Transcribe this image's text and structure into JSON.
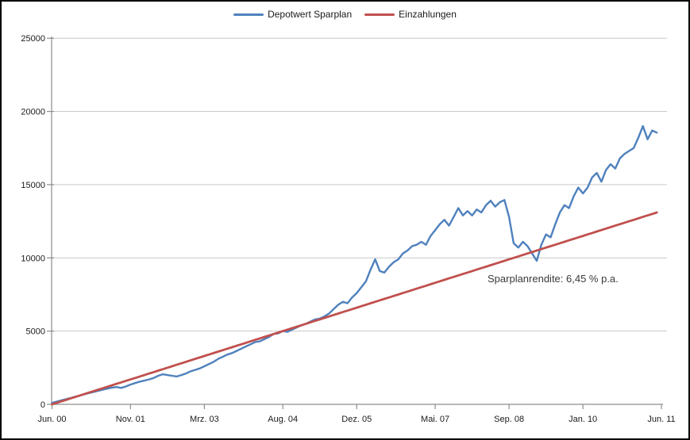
{
  "chart_data": {
    "type": "line",
    "title": "",
    "x_unit": "months since Jun 2000, monthly points",
    "x_tick_labels": [
      "Jun. 00",
      "Nov. 01",
      "Mrz. 03",
      "Aug. 04",
      "Dez. 05",
      "Mai. 07",
      "Sep. 08",
      "Jan. 10",
      "Jun. 11"
    ],
    "x_tick_months": [
      0,
      17,
      33,
      50,
      66,
      83,
      99,
      115,
      132
    ],
    "y_ticks": [
      0,
      5000,
      10000,
      15000,
      20000,
      25000
    ],
    "ylim": [
      0,
      25000
    ],
    "grid": "horizontal",
    "legend_position": "top-center",
    "axis_color": "#8c8c8c",
    "gridline_color": "#c9c9c9",
    "label_color": "#1a1a1a",
    "annotation": {
      "text": "Sparplanrendite: 6,45 % p.a."
    },
    "series": [
      {
        "name": "Depotwert Sparplan",
        "color": "#4F81BD",
        "values": [
          95,
          185,
          270,
          350,
          430,
          520,
          600,
          690,
          770,
          840,
          920,
          1000,
          1070,
          1140,
          1180,
          1120,
          1220,
          1350,
          1450,
          1550,
          1620,
          1700,
          1800,
          1950,
          2050,
          2000,
          1950,
          1900,
          2000,
          2100,
          2250,
          2350,
          2450,
          2600,
          2750,
          2900,
          3100,
          3250,
          3400,
          3500,
          3650,
          3800,
          3950,
          4100,
          4250,
          4300,
          4450,
          4600,
          4800,
          4850,
          5000,
          4950,
          5100,
          5250,
          5400,
          5500,
          5650,
          5800,
          5850,
          6000,
          6200,
          6500,
          6800,
          7000,
          6900,
          7300,
          7600,
          8000,
          8400,
          9200,
          9900,
          9100,
          9000,
          9400,
          9700,
          9900,
          10300,
          10500,
          10800,
          10900,
          11100,
          10900,
          11500,
          11900,
          12300,
          12600,
          12200,
          12800,
          13400,
          12900,
          13200,
          12900,
          13300,
          13100,
          13600,
          13900,
          13500,
          13800,
          13950,
          12800,
          11000,
          10700,
          11100,
          10800,
          10300,
          9800,
          10900,
          11600,
          11400,
          12300,
          13100,
          13600,
          13400,
          14200,
          14800,
          14400,
          14800,
          15500,
          15800,
          15200,
          16000,
          16400,
          16100,
          16800,
          17100,
          17300,
          17500,
          18200,
          19000,
          18100,
          18700,
          18550
        ]
      },
      {
        "name": "Einzahlungen",
        "color": "#C0504D",
        "monthly_deposit": 100,
        "values": [
          0,
          100,
          200,
          300,
          400,
          500,
          600,
          700,
          800,
          900,
          1000,
          1100,
          1200,
          1300,
          1400,
          1500,
          1600,
          1700,
          1800,
          1900,
          2000,
          2100,
          2200,
          2300,
          2400,
          2500,
          2600,
          2700,
          2800,
          2900,
          3000,
          3100,
          3200,
          3300,
          3400,
          3500,
          3600,
          3700,
          3800,
          3900,
          4000,
          4100,
          4200,
          4300,
          4400,
          4500,
          4600,
          4700,
          4800,
          4900,
          5000,
          5100,
          5200,
          5300,
          5400,
          5500,
          5600,
          5700,
          5800,
          5900,
          6000,
          6100,
          6200,
          6300,
          6400,
          6500,
          6600,
          6700,
          6800,
          6900,
          7000,
          7100,
          7200,
          7300,
          7400,
          7500,
          7600,
          7700,
          7800,
          7900,
          8000,
          8100,
          8200,
          8300,
          8400,
          8500,
          8600,
          8700,
          8800,
          8900,
          9000,
          9100,
          9200,
          9300,
          9400,
          9500,
          9600,
          9700,
          9800,
          9900,
          10000,
          10100,
          10200,
          10300,
          10400,
          10500,
          10600,
          10700,
          10800,
          10900,
          11000,
          11100,
          11200,
          11300,
          11400,
          11500,
          11600,
          11700,
          11800,
          11900,
          12000,
          12100,
          12200,
          12300,
          12400,
          12500,
          12600,
          12700,
          12800,
          12900,
          13000,
          13100
        ]
      }
    ]
  }
}
